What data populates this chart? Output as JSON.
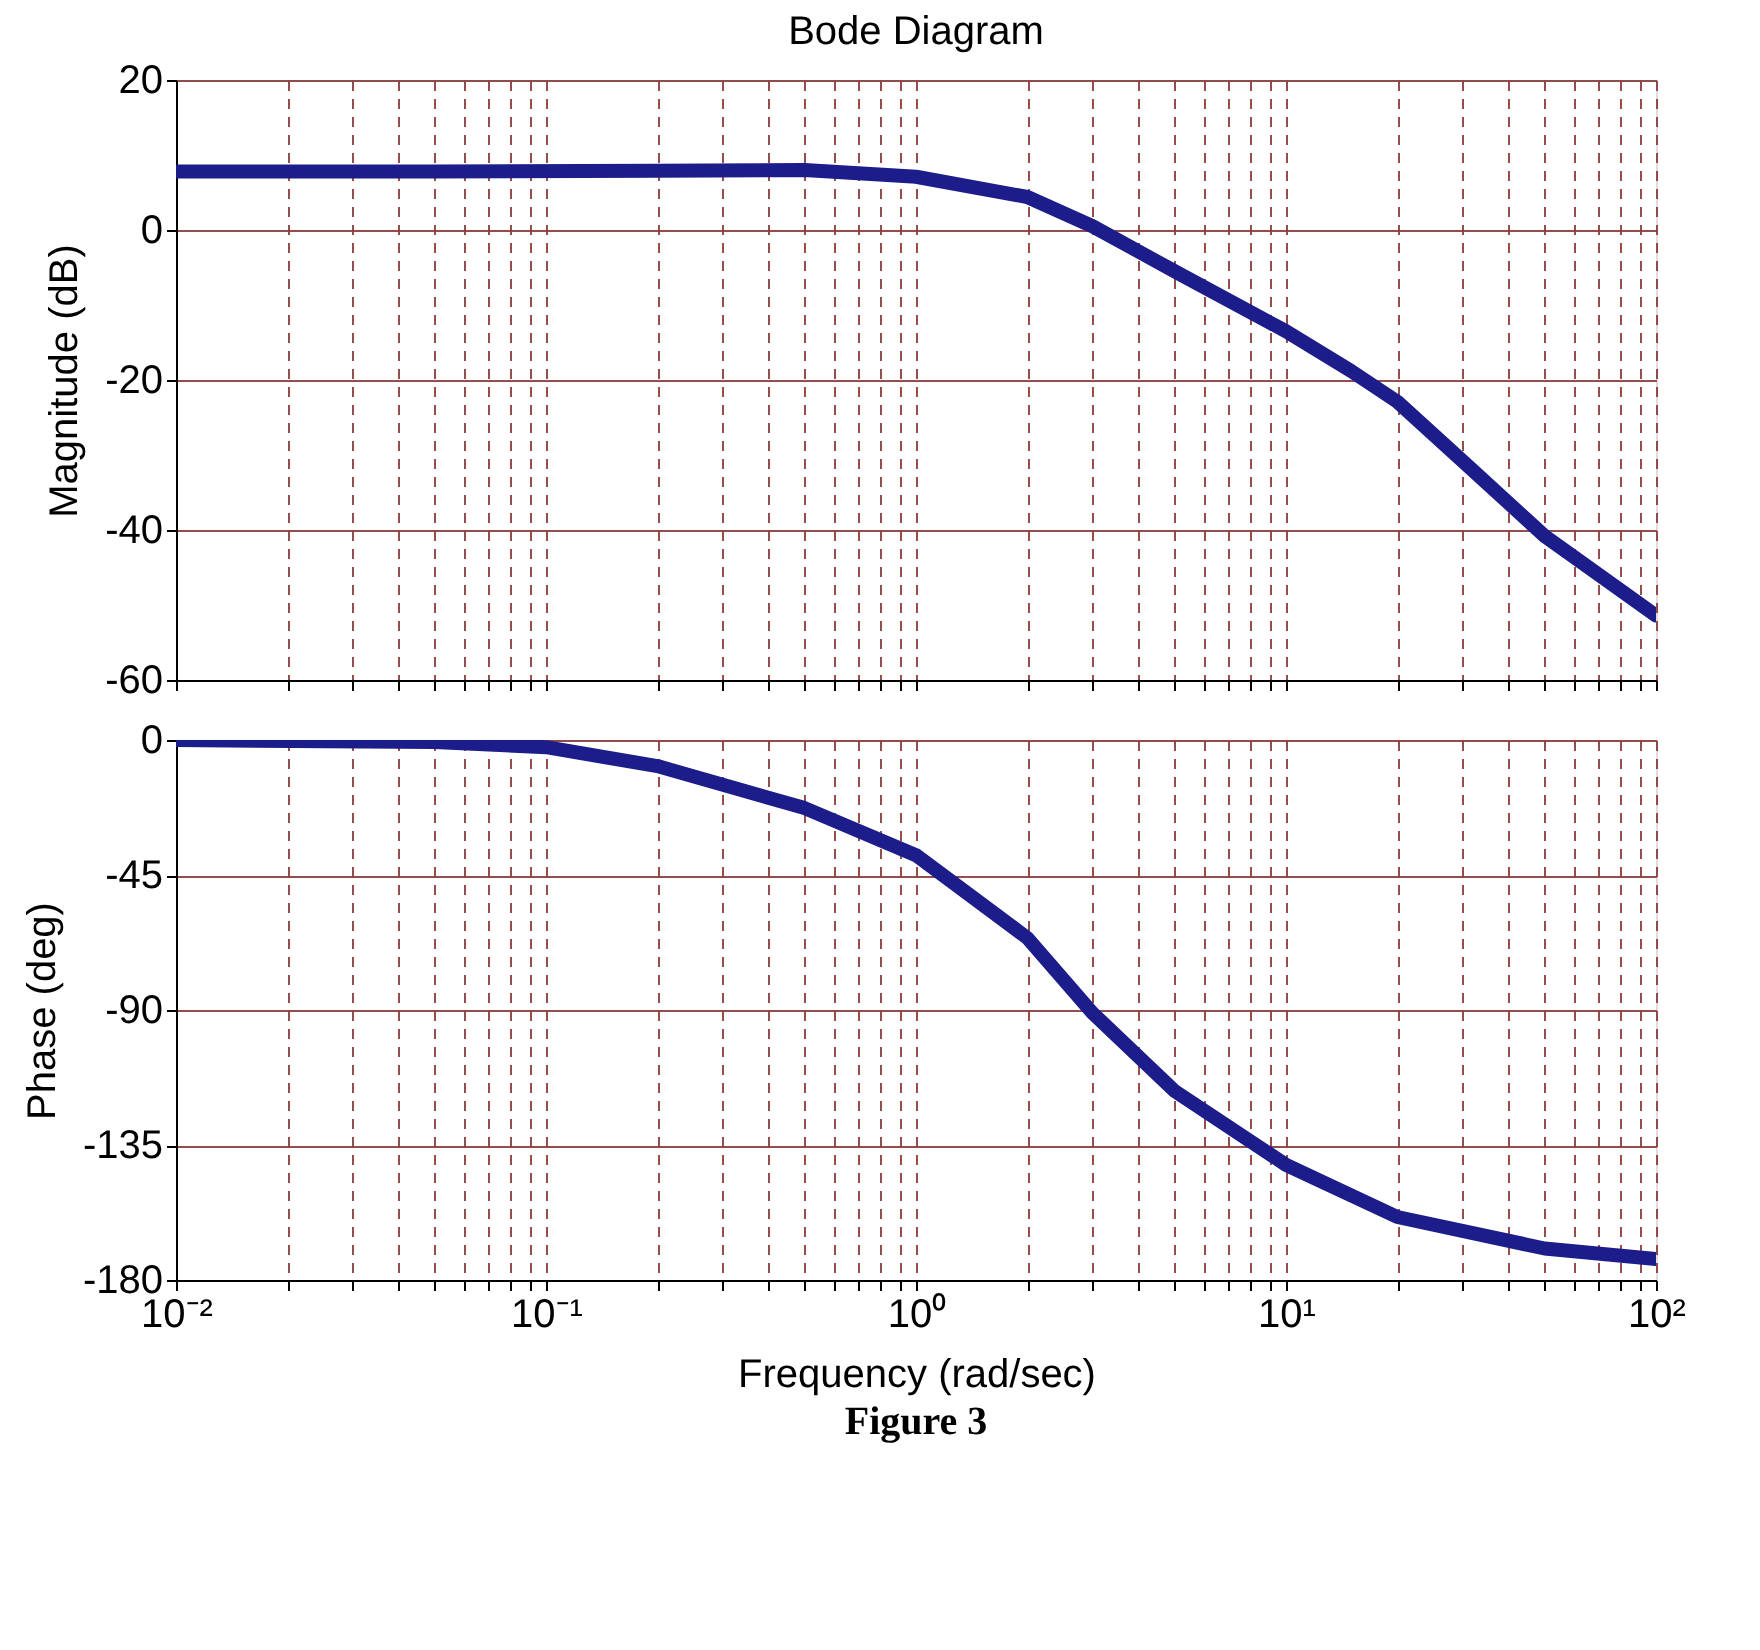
{
  "chart_data": [
    {
      "type": "line",
      "title": "Bode Diagram",
      "ylabel": "Magnitude (dB)",
      "x": [
        0.01,
        0.05,
        0.2,
        0.5,
        1,
        2,
        3,
        5,
        10,
        15,
        20,
        30,
        50,
        100
      ],
      "series": [
        {
          "color": "#1c1c8a",
          "values": [
            7.8,
            7.8,
            7.9,
            8.0,
            7.1,
            4.4,
            0.5,
            -5.5,
            -13.5,
            -18.8,
            -22.9,
            -30.8,
            -40.8,
            -51.4
          ]
        }
      ],
      "xlim": [
        0.01,
        100
      ],
      "ylim": [
        -60,
        20
      ],
      "yticks": [
        -60,
        -40,
        -20,
        0,
        20
      ],
      "xticks": [
        {
          "value": 0.01,
          "label": null
        },
        {
          "value": 0.02,
          "label": null
        },
        {
          "value": 0.03,
          "label": null
        },
        {
          "value": 0.04,
          "label": null
        },
        {
          "value": 0.05,
          "label": null
        },
        {
          "value": 0.06,
          "label": null
        },
        {
          "value": 0.07,
          "label": null
        },
        {
          "value": 0.08,
          "label": null
        },
        {
          "value": 0.09,
          "label": null
        },
        {
          "value": 0.1,
          "label": null
        },
        {
          "value": 0.2,
          "label": null
        },
        {
          "value": 0.3,
          "label": null
        },
        {
          "value": 0.4,
          "label": null
        },
        {
          "value": 0.5,
          "label": null
        },
        {
          "value": 0.6,
          "label": null
        },
        {
          "value": 0.7,
          "label": null
        },
        {
          "value": 0.8,
          "label": null
        },
        {
          "value": 0.9,
          "label": null
        },
        {
          "value": 1,
          "label": null
        },
        {
          "value": 2,
          "label": null
        },
        {
          "value": 3,
          "label": null
        },
        {
          "value": 4,
          "label": null
        },
        {
          "value": 5,
          "label": null
        },
        {
          "value": 6,
          "label": null
        },
        {
          "value": 7,
          "label": null
        },
        {
          "value": 8,
          "label": null
        },
        {
          "value": 9,
          "label": null
        },
        {
          "value": 10,
          "label": null
        },
        {
          "value": 20,
          "label": null
        },
        {
          "value": 30,
          "label": null
        },
        {
          "value": 40,
          "label": null
        },
        {
          "value": 50,
          "label": null
        },
        {
          "value": 60,
          "label": null
        },
        {
          "value": 70,
          "label": null
        },
        {
          "value": 80,
          "label": null
        },
        {
          "value": 90,
          "label": null
        },
        {
          "value": 100,
          "label": null
        }
      ],
      "log": "x",
      "grid": true,
      "tick_labels": "y",
      "line_style": "solid"
    },
    {
      "type": "line",
      "xlabel": "Frequency  (rad/sec)",
      "ylabel": "Phase (deg)",
      "annotations": [
        "Figure 3"
      ],
      "x": [
        0.01,
        0.05,
        0.1,
        0.2,
        0.5,
        1,
        2,
        3,
        5,
        10,
        20,
        50,
        100
      ],
      "series": [
        {
          "color": "#1c1c8a",
          "values": [
            0,
            -0.7,
            -2.4,
            -8.7,
            -22.7,
            -38.4,
            -66,
            -91,
            -117,
            -141.6,
            -159,
            -169.5,
            -173
          ]
        }
      ],
      "xlim": [
        0.01,
        100
      ],
      "ylim": [
        -180,
        0
      ],
      "yticks": [
        -180,
        -135,
        -90,
        -45,
        0
      ],
      "xticks": [
        {
          "value": 0.01,
          "label": "10⁻²"
        },
        {
          "value": 0.02,
          "label": null
        },
        {
          "value": 0.03,
          "label": null
        },
        {
          "value": 0.04,
          "label": null
        },
        {
          "value": 0.05,
          "label": null
        },
        {
          "value": 0.06,
          "label": null
        },
        {
          "value": 0.07,
          "label": null
        },
        {
          "value": 0.08,
          "label": null
        },
        {
          "value": 0.09,
          "label": null
        },
        {
          "value": 0.1,
          "label": "10⁻¹"
        },
        {
          "value": 0.2,
          "label": null
        },
        {
          "value": 0.3,
          "label": null
        },
        {
          "value": 0.4,
          "label": null
        },
        {
          "value": 0.5,
          "label": null
        },
        {
          "value": 0.6,
          "label": null
        },
        {
          "value": 0.7,
          "label": null
        },
        {
          "value": 0.8,
          "label": null
        },
        {
          "value": 0.9,
          "label": null
        },
        {
          "value": 1,
          "label": "10⁰"
        },
        {
          "value": 2,
          "label": null
        },
        {
          "value": 3,
          "label": null
        },
        {
          "value": 4,
          "label": null
        },
        {
          "value": 5,
          "label": null
        },
        {
          "value": 6,
          "label": null
        },
        {
          "value": 7,
          "label": null
        },
        {
          "value": 8,
          "label": null
        },
        {
          "value": 9,
          "label": null
        },
        {
          "value": 10,
          "label": "10¹"
        },
        {
          "value": 20,
          "label": null
        },
        {
          "value": 30,
          "label": null
        },
        {
          "value": 40,
          "label": null
        },
        {
          "value": 50,
          "label": null
        },
        {
          "value": 60,
          "label": null
        },
        {
          "value": 70,
          "label": null
        },
        {
          "value": 80,
          "label": null
        },
        {
          "value": 90,
          "label": null
        },
        {
          "value": 100,
          "label": "10²"
        }
      ],
      "log": "x",
      "grid": true,
      "line_style": "solid"
    }
  ]
}
